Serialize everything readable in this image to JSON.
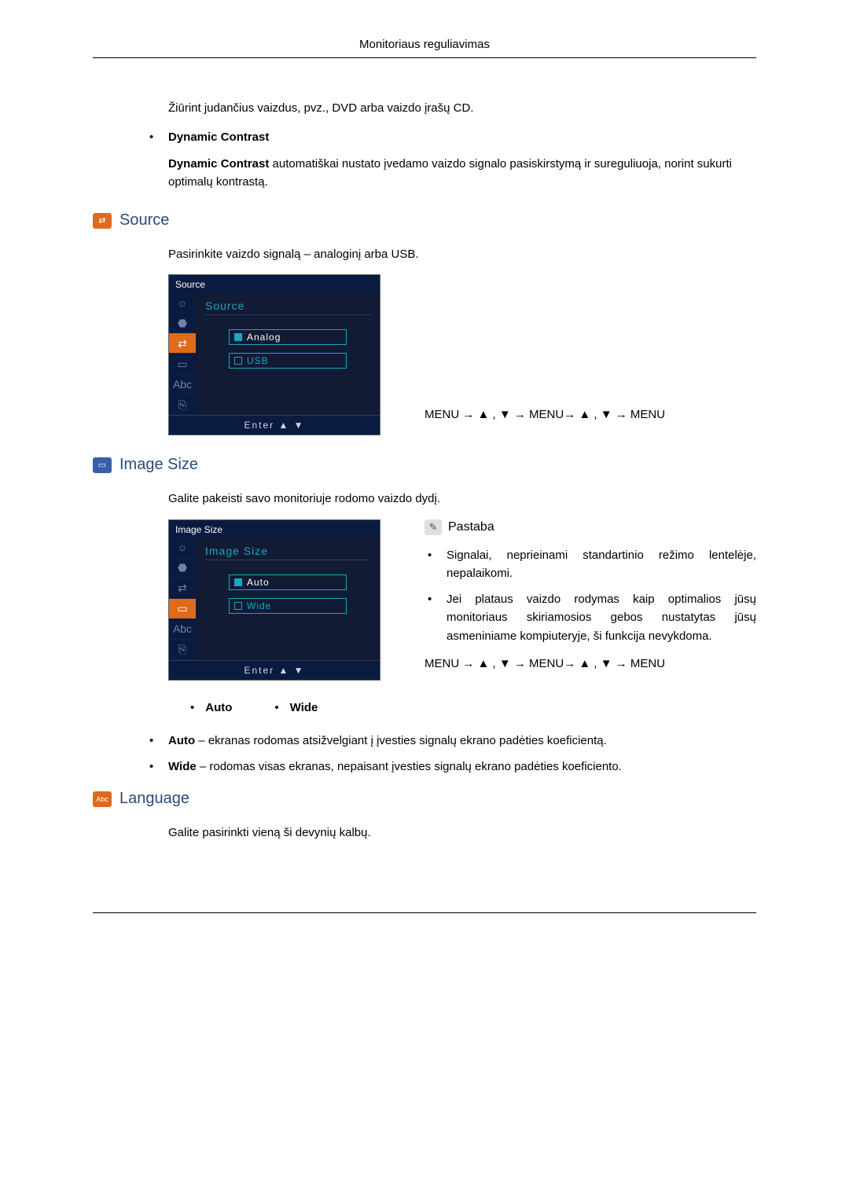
{
  "colors": {
    "heading": "#2b4a7a",
    "rule": "#000000",
    "osd_bg": "#0b1b40",
    "osd_panel": "#121b34",
    "osd_accent": "#1fa5bf",
    "osd_highlight": "#e06a1a",
    "icon_source_bg": "#e06a1a",
    "icon_imagesize_bg": "#3a5ea8",
    "icon_language_bg": "#e06a1a",
    "note_icon_bg": "#dcdfe4"
  },
  "page_header": "Monitoriaus reguliavimas",
  "intro_para": "Žiūrint judančius vaizdus, pvz., DVD arba vaizdo įrašų CD.",
  "dyn": {
    "title": "Dynamic Contrast",
    "label_repeat": "Dynamic Contrast",
    "desc_rest": " automatiškai nustato įvedamo vaizdo signalo pasiskirstymą ir sureguliuoja, norint sukurti optimalų kontrastą."
  },
  "source": {
    "heading": "Source",
    "para": "Pasirinkite vaizdo signalą – analoginį arba USB.",
    "osd": {
      "title": "Source",
      "subtitle": "Source",
      "options": [
        "Analog",
        "USB"
      ],
      "selected_index": 0,
      "footer": "Enter   ▲   ▼"
    },
    "menuseq": "MENU → ▲ , ▼ → MENU→ ▲ , ▼ → MENU"
  },
  "image_size": {
    "heading": "Image Size",
    "para": "Galite pakeisti savo monitoriuje rodomo vaizdo dydį.",
    "osd": {
      "title": "Image Size",
      "subtitle": "Image Size",
      "options": [
        "Auto",
        "Wide"
      ],
      "selected_index": 0,
      "footer": "Enter   ▲   ▼"
    },
    "note": {
      "label": "Pastaba",
      "bullets": [
        "Signalai, neprieinami standartinio režimo lentelėje, nepalaikomi.",
        "Jei plataus vaizdo rodymas kaip optimalios jūsų monitoriaus skiriamosios gebos nustatytas jūsų asmeniniame kompiuteryje, ši funkcija nevykdoma."
      ]
    },
    "menuseq": "MENU → ▲ , ▼ → MENU→ ▲ , ▼ → MENU",
    "inline_opts": [
      "Auto",
      "Wide"
    ],
    "defs": {
      "auto_label": "Auto",
      "auto_text": " – ekranas rodomas atsižvelgiant į įvesties signalų ekrano padėties koeficientą.",
      "wide_label": "Wide",
      "wide_text": " – rodomas visas ekranas, nepaisant įvesties signalų ekrano padėties koeficiento."
    }
  },
  "language": {
    "heading": "Language",
    "para": "Galite pasirinkti vieną ši devynių kalbų."
  },
  "osd_icons": {
    "items": [
      "☼",
      "⬣",
      "⇄",
      "▭",
      "Abc",
      "⎘"
    ],
    "active_source_index": 2,
    "active_imagesize_index": 3
  }
}
